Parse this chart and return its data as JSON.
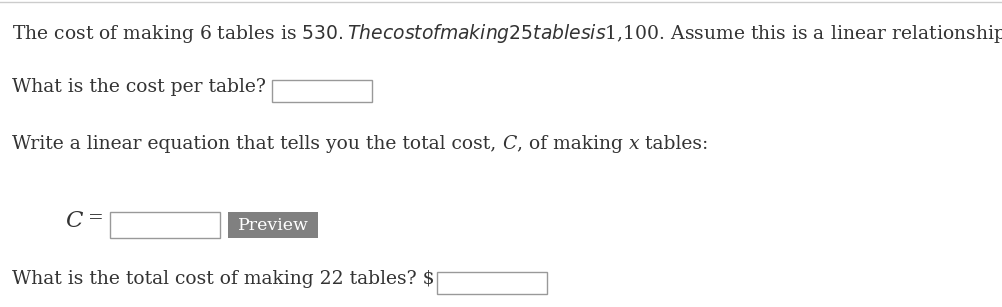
{
  "bg_color": "#ffffff",
  "text_color": "#333333",
  "line1": "The cost of making 6 tables is $530. The cost of making 25 tables is $1,100. Assume this is a linear relationship.",
  "line2_text": "What is the cost per table?",
  "line3_part1": "Write a linear equation that tells you the total cost, ",
  "line3_C": "C",
  "line3_part2": ", of making ",
  "line3_x": "x",
  "line3_part3": " tables:",
  "line4_C": "C",
  "line4_eq": " =",
  "preview_text": "Preview",
  "preview_bg": "#808080",
  "preview_text_color": "#ffffff",
  "line5_text": "What is the total cost of making 22 tables? $",
  "font_size": 13.5,
  "input_box_border": "#999999",
  "top_border_color": "#cccccc",
  "fig_width": 10.03,
  "fig_height": 3.07,
  "dpi": 100
}
